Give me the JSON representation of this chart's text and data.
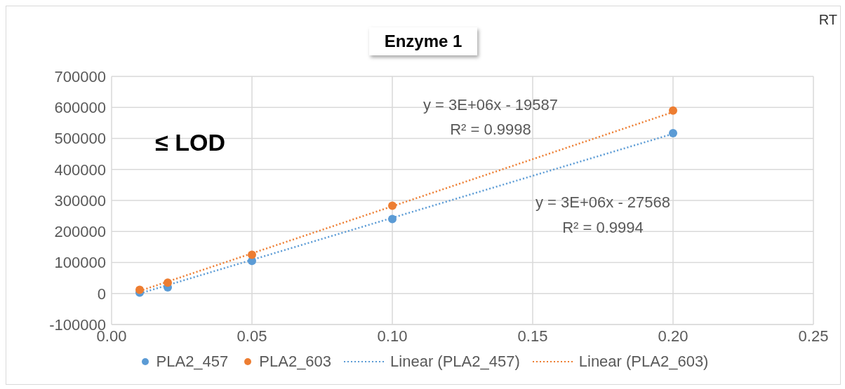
{
  "chart_data": {
    "type": "scatter",
    "title": "Enzyme 1",
    "series": [
      {
        "name": "PLA2_457",
        "color": "#5b9bd5",
        "x": [
          0.01,
          0.02,
          0.05,
          0.1,
          0.2
        ],
        "values": [
          3000,
          20000,
          105000,
          240000,
          517000
        ]
      },
      {
        "name": "PLA2_603",
        "color": "#ed7d31",
        "x": [
          0.01,
          0.02,
          0.05,
          0.1,
          0.2
        ],
        "values": [
          12000,
          35000,
          125000,
          283000,
          590000
        ]
      },
      {
        "name": "Linear (PLA2_457)",
        "type": "line",
        "color": "#5b9bd5",
        "x": [
          0.01,
          0.2
        ],
        "values": [
          0,
          515000
        ],
        "line_style": "dotted",
        "marker": "none"
      },
      {
        "name": "Linear (PLA2_603)",
        "type": "line",
        "color": "#ed7d31",
        "x": [
          0.01,
          0.2
        ],
        "values": [
          8000,
          585000
        ],
        "line_style": "dotted",
        "marker": "none"
      }
    ],
    "xlim": [
      0,
      0.25
    ],
    "xticks": [
      {
        "value": 0,
        "label": "0.00"
      },
      {
        "value": 0.05,
        "label": "0.05"
      },
      {
        "value": 0.1,
        "label": "0.10"
      },
      {
        "value": 0.15,
        "label": "0.15"
      },
      {
        "value": 0.2,
        "label": "0.20"
      },
      {
        "value": 0.25,
        "label": "0.25"
      }
    ],
    "ylim": [
      -100000,
      700000
    ],
    "yticks": [
      -100000,
      0,
      100000,
      200000,
      300000,
      400000,
      500000,
      600000,
      700000
    ],
    "grid": true,
    "legend": "bottom",
    "marker": "circle",
    "annotations": [
      "y = 3E+06x - 19587",
      "R² = 0.9998",
      "y = 3E+06x - 27568",
      "R² = 0.9994",
      "≤ LOD",
      "RT"
    ]
  }
}
